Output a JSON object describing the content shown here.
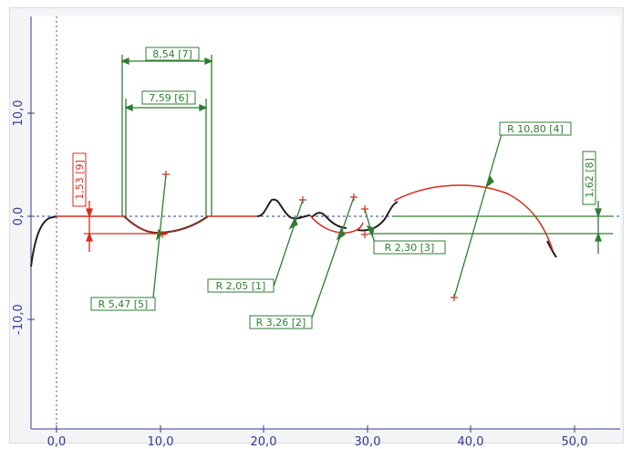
{
  "axes": {
    "x_ticks": [
      "0,0",
      "10,0",
      "20,0",
      "30,0",
      "40,0",
      "50,0"
    ],
    "y_ticks": [
      "10,0",
      "0,0",
      "-10,0"
    ]
  },
  "annotations": {
    "dim_7": "8,54 [7]",
    "dim_6": "7,59 [6]",
    "dim_9": "1,53 [9]",
    "dim_8": "1,62 [8]",
    "radius_4": "R 10,80 [4]",
    "radius_3": "R 2,30 [3]",
    "radius_1": "R 2,05 [1]",
    "radius_5": "R 5,47 [5]",
    "radius_2": "R 3,26 [2]"
  },
  "colors": {
    "profile": "#222222",
    "measure_green": "#2e7d32",
    "measure_red": "#d62c1a",
    "axis": "#333a8c",
    "background": "#ffffff"
  }
}
